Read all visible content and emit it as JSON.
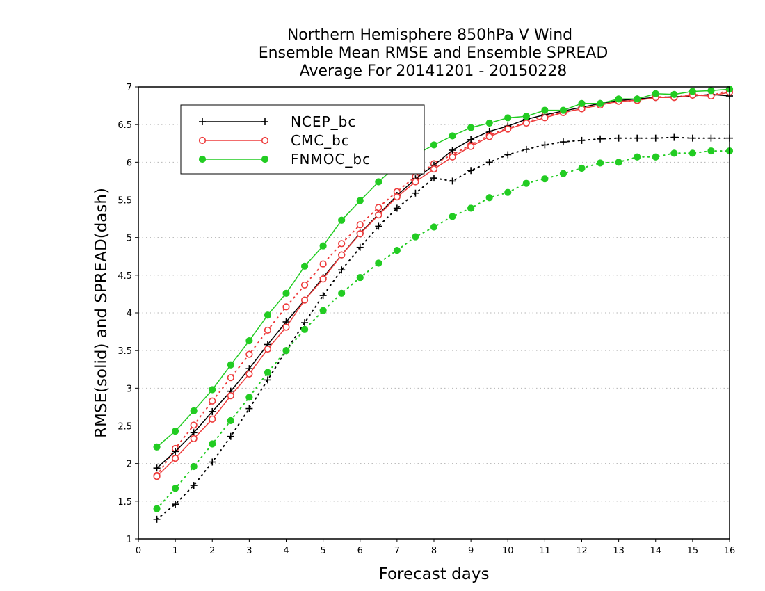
{
  "chart_data": {
    "type": "line",
    "title": [
      "Northern Hemisphere 850hPa V Wind",
      "Ensemble Mean RMSE and Ensemble SPREAD",
      "Average For 20141201 - 20150228"
    ],
    "xlabel": "Forecast days",
    "ylabel": "RMSE(solid)  and  SPREAD(dash)",
    "xlim": [
      0,
      16
    ],
    "ylim": [
      1,
      7
    ],
    "xticks": [
      "0",
      "1",
      "2",
      "3",
      "4",
      "5",
      "6",
      "7",
      "8",
      "9",
      "10",
      "11",
      "12",
      "13",
      "14",
      "15",
      "16"
    ],
    "yticks": [
      "1",
      "1.5",
      "2",
      "2.5",
      "3",
      "3.5",
      "4",
      "4.5",
      "5",
      "5.5",
      "6",
      "6.5",
      "7"
    ],
    "grid": "horizontal dotted",
    "legend_position": "top-left",
    "x": [
      0.5,
      1,
      1.5,
      2,
      2.5,
      3,
      3.5,
      4,
      4.5,
      5,
      5.5,
      6,
      6.5,
      7,
      7.5,
      8,
      8.5,
      9,
      9.5,
      10,
      10.5,
      11,
      11.5,
      12,
      12.5,
      13,
      13.5,
      14,
      14.5,
      15,
      15.5,
      16
    ],
    "series": [
      {
        "name": "NCEP_bc",
        "color": "#000000",
        "marker": "plus",
        "rmse": [
          1.94,
          2.16,
          2.41,
          2.69,
          2.96,
          3.26,
          3.58,
          3.88,
          4.17,
          4.47,
          4.77,
          5.06,
          5.31,
          5.56,
          5.78,
          5.96,
          6.16,
          6.3,
          6.41,
          6.48,
          6.57,
          6.63,
          6.68,
          6.73,
          6.78,
          6.82,
          6.84,
          6.86,
          6.87,
          6.88,
          6.9,
          6.88
        ],
        "spread": [
          1.26,
          1.46,
          1.71,
          2.02,
          2.36,
          2.73,
          3.11,
          3.5,
          3.87,
          4.23,
          4.57,
          4.87,
          5.15,
          5.39,
          5.59,
          5.79,
          5.75,
          5.89,
          6.0,
          6.1,
          6.17,
          6.23,
          6.27,
          6.29,
          6.31,
          6.32,
          6.32,
          6.32,
          6.33,
          6.32,
          6.32,
          6.32
        ]
      },
      {
        "name": "CMC_bc",
        "color": "#ee3b3b",
        "marker": "open-circle",
        "rmse": [
          1.83,
          2.07,
          2.33,
          2.59,
          2.9,
          3.19,
          3.52,
          3.81,
          4.17,
          4.45,
          4.77,
          5.05,
          5.3,
          5.54,
          5.74,
          5.91,
          6.07,
          6.21,
          6.34,
          6.44,
          6.52,
          6.59,
          6.66,
          6.71,
          6.76,
          6.81,
          6.82,
          6.86,
          6.86,
          6.89,
          6.88,
          6.93
        ],
        "spread": [
          1.84,
          2.2,
          2.51,
          2.83,
          3.14,
          3.45,
          3.77,
          4.08,
          4.37,
          4.65,
          4.92,
          5.17,
          5.4,
          5.61,
          5.81,
          5.98,
          6.1,
          6.23,
          6.36,
          6.45,
          6.53,
          6.62,
          6.66,
          6.71,
          6.76,
          6.81,
          6.82,
          6.87,
          6.86,
          6.9,
          6.88,
          6.96
        ]
      },
      {
        "name": "FNMOC_bc",
        "color": "#22cc22",
        "marker": "filled-circle",
        "rmse": [
          2.22,
          2.43,
          2.7,
          2.98,
          3.31,
          3.63,
          3.97,
          4.26,
          4.62,
          4.89,
          5.23,
          5.49,
          5.74,
          5.96,
          6.1,
          6.23,
          6.35,
          6.46,
          6.52,
          6.59,
          6.61,
          6.69,
          6.69,
          6.78,
          6.78,
          6.84,
          6.84,
          6.91,
          6.9,
          6.94,
          6.95,
          6.97
        ],
        "spread": [
          1.4,
          1.67,
          1.96,
          2.26,
          2.57,
          2.88,
          3.21,
          3.5,
          3.78,
          4.03,
          4.26,
          4.47,
          4.66,
          4.83,
          5.01,
          5.14,
          5.28,
          5.39,
          5.53,
          5.6,
          5.72,
          5.78,
          5.85,
          5.92,
          5.99,
          6.0,
          6.07,
          6.07,
          6.12,
          6.12,
          6.15,
          6.15
        ]
      }
    ]
  }
}
